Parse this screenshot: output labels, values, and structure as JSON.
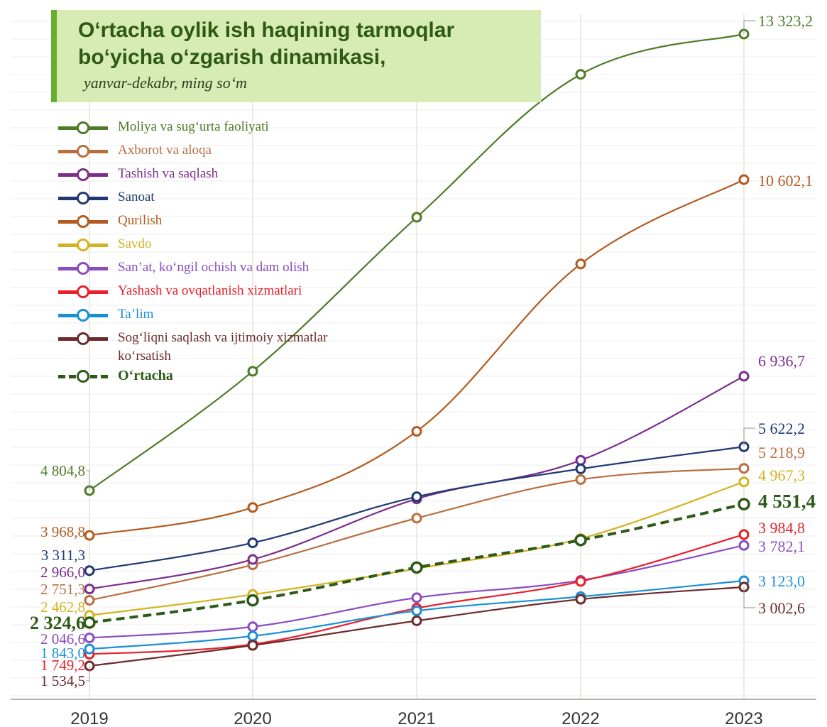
{
  "title": {
    "main": "O‘rtacha oylik ish haqining tarmoqlar bo‘yicha o‘zgarish dinamikasi,",
    "subtitle": "yanvar-dekabr, ming so‘m"
  },
  "chart_data": {
    "type": "line",
    "categories": [
      "2019",
      "2020",
      "2021",
      "2022",
      "2023"
    ],
    "ylim": [
      1000,
      14000
    ],
    "grid": true,
    "legend_position": "top-left",
    "series": [
      {
        "name": "Moliya va sug‘urta faoliyati",
        "color": "#4f7a28",
        "values": [
          4804.8,
          7030,
          9900,
          12570,
          13323.2
        ],
        "label_first": "4 804,8",
        "label_last": "13 323,2"
      },
      {
        "name": "Axborot va aloqa",
        "color": "#b86f40",
        "values": [
          2751.3,
          3420,
          4290,
          5010,
          5218.9
        ],
        "label_first": "2 751,3",
        "label_last": "5 218,9"
      },
      {
        "name": "Tashish va saqlash",
        "color": "#7a2e8c",
        "values": [
          2966.0,
          3520,
          4650,
          5370,
          6936.7
        ],
        "label_first": "2 966,0",
        "label_last": "6 936,7"
      },
      {
        "name": "Sanoat",
        "color": "#1f3a73",
        "values": [
          3311.3,
          3830,
          4690,
          5210,
          5622.2
        ],
        "label_first": "3 311,3",
        "label_last": "5 622,2"
      },
      {
        "name": "Qurilish",
        "color": "#b35a1f",
        "values": [
          3968.8,
          4490,
          5910,
          9030,
          10602.1
        ],
        "label_first": "3 968,8",
        "label_last": "10 602,1"
      },
      {
        "name": "Savdo",
        "color": "#d4b21e",
        "values": [
          2462.8,
          2860,
          3350,
          3910,
          4967.3
        ],
        "label_first": "2 462,8",
        "label_last": "4 967,3"
      },
      {
        "name": "San’at, ko‘ngil ochish va dam olish",
        "color": "#8a4dc0",
        "values": [
          2046.6,
          2250,
          2800,
          3130,
          3782.1
        ],
        "label_first": "2 046,6",
        "label_last": "3 782,1"
      },
      {
        "name": "Yashash va ovqatlanish xizmatlari",
        "color": "#e8202a",
        "values": [
          1749.2,
          1930,
          2600,
          3110,
          3984.8
        ],
        "label_first": "1 749,2",
        "label_last": "3 984,8"
      },
      {
        "name": "Ta’lim",
        "color": "#1a8fd6",
        "values": [
          1843.0,
          2080,
          2550,
          2820,
          3123.0
        ],
        "label_first": "1 843,0",
        "label_last": "3 123,0"
      },
      {
        "name": "Sog‘liqni saqlash va ijtimoiy xizmatlar ko‘rsatish",
        "color": "#6b2b2b",
        "values": [
          1534.5,
          1910,
          2360,
          2770,
          3002.6
        ],
        "label_first": "1 534,5",
        "label_last": "3 002,6"
      },
      {
        "name": "O‘rtacha",
        "color": "#2e5a18",
        "dashed": true,
        "bold": true,
        "values": [
          2324.6,
          2750,
          3370,
          3880,
          4551.4
        ],
        "label_first": "2 324,6",
        "label_last": "4 551,4"
      }
    ]
  }
}
